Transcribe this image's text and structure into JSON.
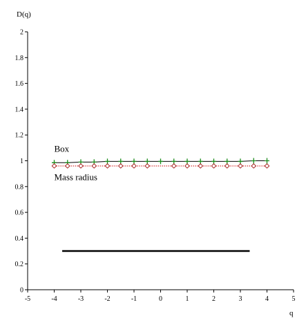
{
  "chart_data": {
    "type": "line",
    "title": "",
    "xlabel": "q",
    "ylabel": "D(q)",
    "xlim": [
      -5,
      5
    ],
    "ylim": [
      0,
      2
    ],
    "xticks": [
      -5,
      -4,
      -3,
      -2,
      -1,
      0,
      1,
      2,
      3,
      4,
      5
    ],
    "yticks": [
      0,
      0.2,
      0.4,
      0.6,
      0.8,
      1,
      1.2,
      1.4,
      1.6,
      1.8,
      2
    ],
    "grid": false,
    "legend": "none",
    "series": [
      {
        "name": "Box",
        "color": "#000000",
        "marker_color": "#1a8a1a",
        "marker": "plus",
        "x": [
          -4,
          -3.5,
          -3,
          -2.5,
          -2,
          -1.5,
          -1,
          -0.5,
          0,
          0.5,
          1,
          1.5,
          2,
          2.5,
          3,
          3.5,
          4
        ],
        "y": [
          0.985,
          0.985,
          0.99,
          0.99,
          0.995,
          0.995,
          0.995,
          0.995,
          0.995,
          0.995,
          0.995,
          0.995,
          0.995,
          0.995,
          0.995,
          1.0,
          1.0
        ]
      },
      {
        "name": "Mass radius",
        "color": "#cc0000",
        "marker_color": "#a01010",
        "marker": "diamond",
        "x": [
          -4,
          -3.5,
          -3,
          -2.5,
          -2,
          -1.5,
          -1,
          -0.5,
          0.5,
          1,
          1.5,
          2,
          2.5,
          3,
          3.5,
          4
        ],
        "y": [
          0.96,
          0.96,
          0.96,
          0.96,
          0.96,
          0.96,
          0.96,
          0.96,
          0.96,
          0.96,
          0.96,
          0.96,
          0.96,
          0.96,
          0.96,
          0.96
        ]
      }
    ],
    "reference_line": {
      "x": [
        -3.7,
        3.35
      ],
      "y": 0.3,
      "color": "#000000"
    },
    "annotations": [
      {
        "text": "Box",
        "x": -4.0,
        "y": 1.07
      },
      {
        "text": "Mass radius",
        "x": -4.0,
        "y": 0.85
      }
    ]
  }
}
